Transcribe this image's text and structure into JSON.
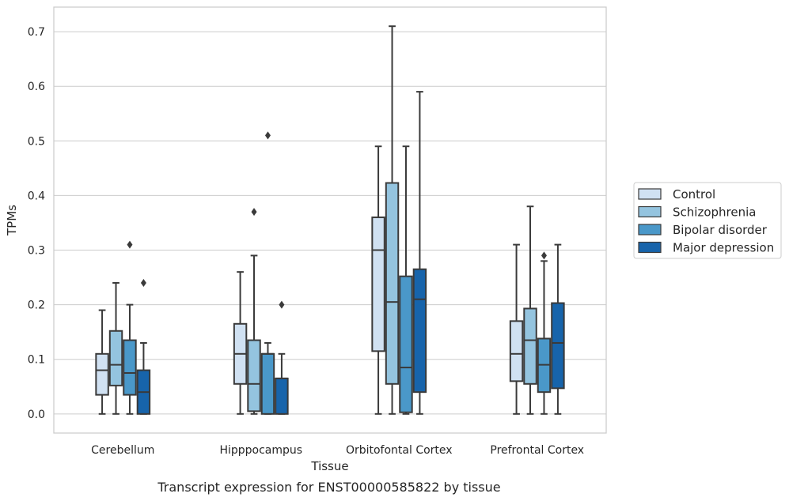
{
  "chart_data": {
    "type": "box",
    "title": "",
    "caption": "Transcript expression for ENST00000585822 by tissue",
    "xlabel": "Tissue",
    "ylabel": "TPMs",
    "ylim": [
      -0.035,
      0.745
    ],
    "yticks": [
      0.0,
      0.1,
      0.2,
      0.3,
      0.4,
      0.5,
      0.6,
      0.7
    ],
    "ytick_labels": [
      "0.0",
      "0.1",
      "0.2",
      "0.3",
      "0.4",
      "0.5",
      "0.6",
      "0.7"
    ],
    "grid": "horizontal",
    "legend_position": "right",
    "categories": [
      "Cerebellum",
      "Hipppocampus",
      "Orbitofontal Cortex",
      "Prefrontal Cortex"
    ],
    "series": [
      {
        "name": "Control",
        "color": "#d0e1f2",
        "boxes": [
          {
            "whislo": 0.0,
            "q1": 0.035,
            "med": 0.08,
            "q3": 0.11,
            "whishi": 0.19,
            "fliers": []
          },
          {
            "whislo": 0.0,
            "q1": 0.055,
            "med": 0.11,
            "q3": 0.165,
            "whishi": 0.26,
            "fliers": []
          },
          {
            "whislo": 0.0,
            "q1": 0.115,
            "med": 0.3,
            "q3": 0.36,
            "whishi": 0.49,
            "fliers": []
          },
          {
            "whislo": 0.0,
            "q1": 0.06,
            "med": 0.11,
            "q3": 0.17,
            "whishi": 0.31,
            "fliers": []
          }
        ]
      },
      {
        "name": "Schizophrenia",
        "color": "#94c4df",
        "boxes": [
          {
            "whislo": 0.0,
            "q1": 0.052,
            "med": 0.09,
            "q3": 0.152,
            "whishi": 0.24,
            "fliers": []
          },
          {
            "whislo": 0.0,
            "q1": 0.005,
            "med": 0.055,
            "q3": 0.135,
            "whishi": 0.29,
            "fliers": [
              0.37
            ]
          },
          {
            "whislo": 0.0,
            "q1": 0.055,
            "med": 0.205,
            "q3": 0.423,
            "whishi": 0.71,
            "fliers": []
          },
          {
            "whislo": 0.0,
            "q1": 0.055,
            "med": 0.135,
            "q3": 0.193,
            "whishi": 0.38,
            "fliers": []
          }
        ]
      },
      {
        "name": "Bipolar disorder",
        "color": "#4a98c9",
        "boxes": [
          {
            "whislo": 0.0,
            "q1": 0.035,
            "med": 0.075,
            "q3": 0.135,
            "whishi": 0.2,
            "fliers": [
              0.31
            ]
          },
          {
            "whislo": 0.0,
            "q1": 0.0,
            "med": 0.11,
            "q3": 0.11,
            "whishi": 0.13,
            "fliers": [
              0.51
            ]
          },
          {
            "whislo": 0.0,
            "q1": 0.003,
            "med": 0.085,
            "q3": 0.252,
            "whishi": 0.49,
            "fliers": []
          },
          {
            "whislo": 0.0,
            "q1": 0.04,
            "med": 0.09,
            "q3": 0.138,
            "whishi": 0.28,
            "fliers": [
              0.29
            ]
          }
        ]
      },
      {
        "name": "Major depression",
        "color": "#1764ab",
        "boxes": [
          {
            "whislo": 0.0,
            "q1": 0.0,
            "med": 0.04,
            "q3": 0.08,
            "whishi": 0.13,
            "fliers": [
              0.24
            ]
          },
          {
            "whislo": 0.0,
            "q1": 0.0,
            "med": 0.065,
            "q3": 0.065,
            "whishi": 0.11,
            "fliers": [
              0.2
            ]
          },
          {
            "whislo": 0.0,
            "q1": 0.04,
            "med": 0.21,
            "q3": 0.265,
            "whishi": 0.59,
            "fliers": []
          },
          {
            "whislo": 0.0,
            "q1": 0.047,
            "med": 0.13,
            "q3": 0.203,
            "whishi": 0.31,
            "fliers": []
          }
        ]
      }
    ]
  }
}
